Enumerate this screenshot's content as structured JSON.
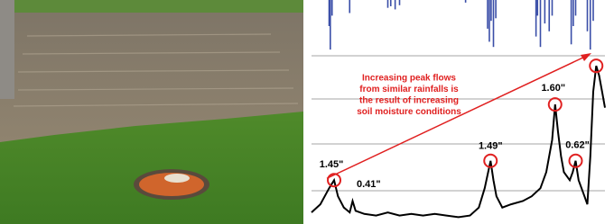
{
  "chart_data": {
    "type": "line",
    "xlim": [
      0,
      100
    ],
    "ylim": [
      0,
      100
    ],
    "x": [
      0,
      3,
      6,
      7.7,
      9,
      11,
      13,
      14,
      15,
      18,
      22,
      26,
      30,
      34,
      38,
      42,
      46,
      50,
      54,
      57,
      59,
      61,
      62,
      63,
      65,
      68,
      72,
      75,
      78,
      80,
      82,
      83,
      84,
      85,
      86,
      88,
      89,
      90,
      91,
      93,
      94,
      95,
      96,
      97,
      98,
      99,
      100
    ],
    "series": [
      {
        "color": "#000000",
        "values": [
          5,
          10,
          20,
          25,
          15,
          8,
          5,
          12,
          6,
          4,
          3,
          5,
          3,
          4,
          3,
          4,
          3,
          2,
          3,
          8,
          20,
          37,
          25,
          15,
          8,
          10,
          12,
          15,
          20,
          30,
          50,
          72,
          55,
          40,
          30,
          25,
          30,
          37,
          25,
          15,
          10,
          40,
          80,
          96,
          90,
          80,
          70
        ]
      }
    ],
    "rainfall": {
      "color": "#3a4ea8",
      "ylim": [
        0,
        1
      ],
      "x": [
        6,
        6.4,
        7,
        13,
        26,
        27,
        28.5,
        30,
        52.5,
        60,
        60.6,
        61.2,
        62,
        62.8,
        76.5,
        77,
        78,
        79.5,
        81,
        82,
        88.5,
        89.2,
        90,
        94,
        95,
        96
      ],
      "values": [
        0.5,
        0.95,
        0.3,
        0.25,
        0.15,
        0.12,
        0.18,
        0.1,
        0.05,
        0.55,
        0.8,
        0.4,
        0.9,
        0.35,
        0.7,
        0.3,
        0.9,
        0.45,
        0.6,
        0.3,
        0.85,
        0.5,
        0.3,
        0.6,
        0.95,
        0.4
      ]
    },
    "annotations": [
      {
        "label": "1.45\"",
        "x": 7.7,
        "y": 25
      },
      {
        "label": "0.41\""
      },
      {
        "label": "1.49\"",
        "x": 61,
        "y": 37
      },
      {
        "label": "1.60\"",
        "x": 83,
        "y": 72
      },
      {
        "label": "0.62\"",
        "x": 90,
        "y": 37
      },
      {
        "x": 97,
        "y": 96
      }
    ],
    "note": [
      "Increasing peak flows",
      "from similar rainfalls is",
      "the result of increasing",
      "soil moisture conditions"
    ],
    "grid": true
  }
}
